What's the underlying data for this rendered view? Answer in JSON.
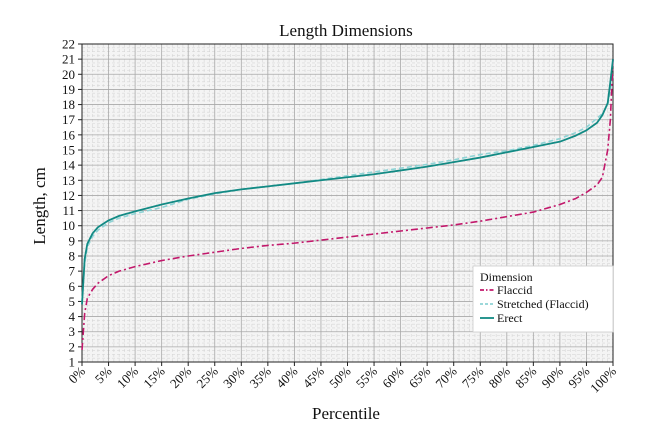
{
  "chart_data": {
    "type": "line",
    "title": "Length Dimensions",
    "xlabel": "Percentile",
    "ylabel": "Length, cm",
    "xlim": [
      0,
      100
    ],
    "ylim": [
      1,
      22
    ],
    "x_ticks": [
      "0%",
      "5%",
      "10%",
      "15%",
      "20%",
      "25%",
      "30%",
      "35%",
      "40%",
      "45%",
      "50%",
      "55%",
      "60%",
      "65%",
      "70%",
      "75%",
      "80%",
      "85%",
      "90%",
      "95%",
      "100%"
    ],
    "y_ticks": [
      "1",
      "2",
      "3",
      "4",
      "5",
      "6",
      "7",
      "8",
      "9",
      "10",
      "11",
      "12",
      "13",
      "14",
      "15",
      "16",
      "17",
      "18",
      "19",
      "20",
      "21",
      "22"
    ],
    "grid": true,
    "legend": {
      "title": "Dimension",
      "position": "bottom-right"
    },
    "series": [
      {
        "name": "Flaccid",
        "color": "#c2186b",
        "dash": "dashdot",
        "x": [
          0,
          0.5,
          1,
          2,
          3,
          5,
          7,
          10,
          15,
          20,
          25,
          30,
          35,
          40,
          45,
          50,
          55,
          60,
          65,
          70,
          75,
          80,
          85,
          90,
          93,
          95,
          97,
          98,
          99,
          99.5,
          100
        ],
        "y": [
          1.8,
          4.2,
          5.2,
          5.8,
          6.2,
          6.7,
          7.0,
          7.3,
          7.7,
          8.0,
          8.25,
          8.5,
          8.7,
          8.85,
          9.05,
          9.25,
          9.45,
          9.65,
          9.85,
          10.05,
          10.3,
          10.6,
          10.9,
          11.4,
          11.8,
          12.2,
          12.7,
          13.2,
          15.0,
          17.0,
          21.0
        ]
      },
      {
        "name": "Stretched (Flaccid)",
        "color": "#8fd3d5",
        "dash": "dashed",
        "x": [
          0,
          0.5,
          1,
          2,
          3,
          5,
          7,
          10,
          15,
          20,
          25,
          30,
          35,
          40,
          45,
          50,
          55,
          60,
          65,
          70,
          75,
          80,
          85,
          90,
          93,
          95,
          97,
          98,
          99,
          99.5,
          100
        ],
        "y": [
          5.0,
          7.5,
          8.6,
          9.3,
          9.7,
          10.2,
          10.5,
          10.8,
          11.2,
          11.75,
          12.1,
          12.4,
          12.6,
          12.8,
          13.05,
          13.3,
          13.55,
          13.8,
          14.05,
          14.35,
          14.7,
          14.95,
          15.3,
          15.75,
          16.15,
          16.5,
          17.1,
          17.4,
          18.0,
          19.0,
          20.0
        ]
      },
      {
        "name": "Erect",
        "color": "#128a84",
        "dash": "solid",
        "x": [
          0,
          0.5,
          1,
          2,
          3,
          5,
          7,
          10,
          15,
          20,
          25,
          30,
          35,
          40,
          45,
          50,
          55,
          60,
          65,
          70,
          75,
          80,
          85,
          90,
          93,
          95,
          97,
          98,
          99,
          99.5,
          100
        ],
        "y": [
          4.8,
          7.8,
          8.8,
          9.5,
          9.9,
          10.35,
          10.65,
          10.95,
          11.4,
          11.8,
          12.15,
          12.4,
          12.6,
          12.8,
          13.0,
          13.2,
          13.4,
          13.65,
          13.9,
          14.2,
          14.5,
          14.85,
          15.2,
          15.55,
          15.95,
          16.3,
          16.8,
          17.3,
          18.1,
          19.5,
          21.0
        ]
      }
    ]
  }
}
